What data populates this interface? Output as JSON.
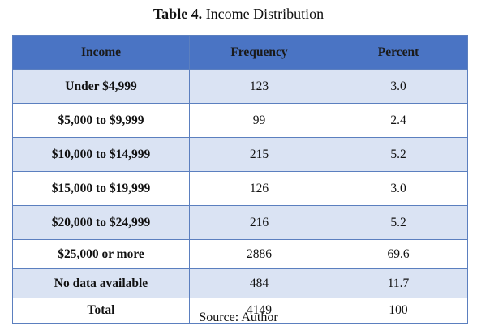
{
  "caption": {
    "label": "Table 4.",
    "title": "Income Distribution"
  },
  "table": {
    "columns": [
      "Income",
      "Frequency",
      "Percent"
    ],
    "rows": [
      {
        "income": "Under $4,999",
        "frequency": "123",
        "percent": "3.0"
      },
      {
        "income": "$5,000 to $9,999",
        "frequency": "99",
        "percent": "2.4"
      },
      {
        "income": "$10,000 to $14,999",
        "frequency": "215",
        "percent": "5.2"
      },
      {
        "income": "$15,000 to $19,999",
        "frequency": "126",
        "percent": "3.0"
      },
      {
        "income": "$20,000 to $24,999",
        "frequency": "216",
        "percent": "5.2"
      },
      {
        "income": "$25,000 or more",
        "frequency": "2886",
        "percent": "69.6"
      },
      {
        "income": "No data available",
        "frequency": "484",
        "percent": "11.7"
      },
      {
        "income": "Total",
        "frequency": "4149",
        "percent": "100"
      }
    ]
  },
  "source": "Source: Author",
  "colors": {
    "header_bg": "#4a74c4",
    "shaded_row_bg": "#dae3f3",
    "border": "#5b7fbf"
  }
}
